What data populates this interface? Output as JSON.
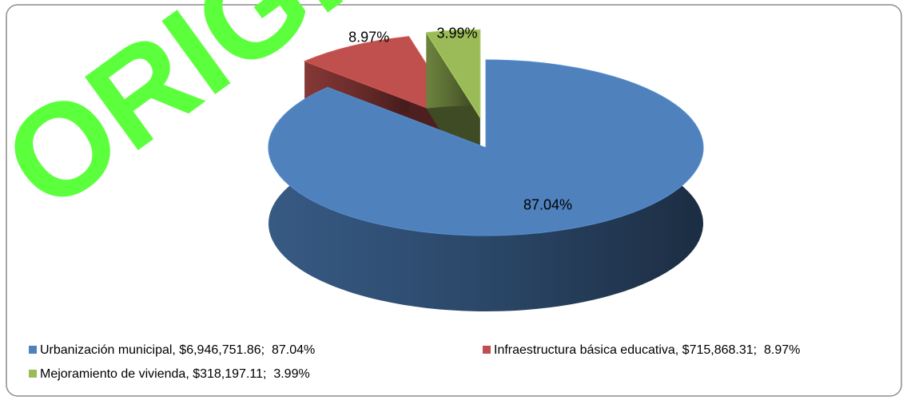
{
  "chart_data": {
    "type": "pie3d",
    "watermark": "ORIGINAL",
    "categories": [
      "Urbanización municipal, $6,946,751.86;  87.04%",
      "Infraestructura básica educativa, $715,868.31;  8.97%",
      "Mejoramiento de vivienda, $318,197.11;  3.99%"
    ],
    "values": [
      87.04,
      8.97,
      3.99
    ],
    "value_labels": [
      "87.04%",
      "8.97%",
      "3.99%"
    ],
    "colors": [
      "#4f81bd",
      "#c0504d",
      "#9bbb59"
    ],
    "exploded": [
      false,
      true,
      true
    ]
  }
}
